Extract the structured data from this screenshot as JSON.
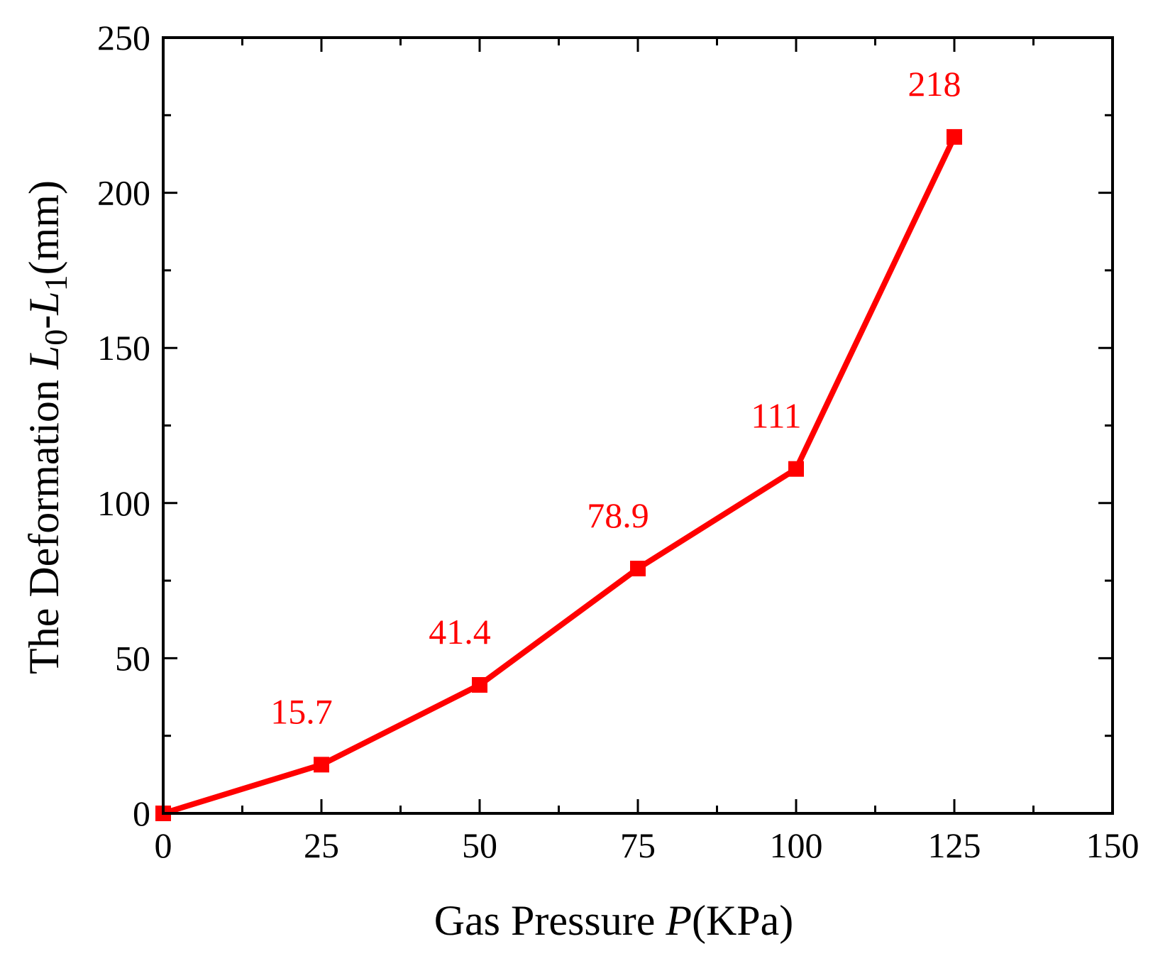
{
  "chart_data": {
    "type": "line",
    "x": [
      0,
      25,
      50,
      75,
      100,
      125
    ],
    "series": [
      {
        "values": [
          0,
          15.7,
          41.4,
          78.9,
          111,
          218
        ],
        "color": "#ff0000",
        "marker": "square"
      }
    ],
    "data_labels": [
      "15.7",
      "41.4",
      "78.9",
      "111",
      "218"
    ],
    "xlabel": {
      "main": "Gas Pressure ",
      "var": "P",
      "unit": "(KPa)"
    },
    "ylabel": {
      "main": "The Deformation ",
      "var0": "L",
      "sub0": "0",
      "dash": "-",
      "var1": "L",
      "sub1": "1",
      "unit": "(mm)"
    },
    "xlim": [
      0,
      150
    ],
    "ylim": [
      0,
      250
    ],
    "xticks": [
      "0",
      "25",
      "50",
      "75",
      "100",
      "125",
      "150"
    ],
    "yticks": [
      "0",
      "50",
      "100",
      "150",
      "200",
      "250"
    ],
    "grid": false,
    "legend": "none"
  }
}
